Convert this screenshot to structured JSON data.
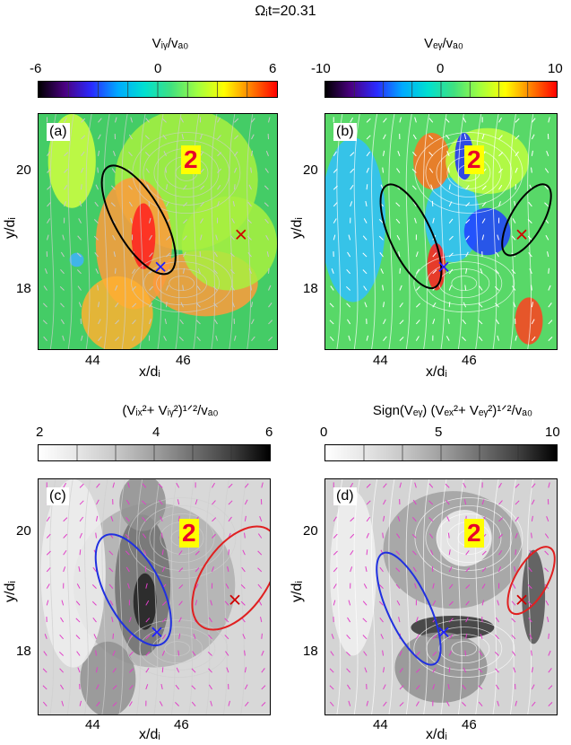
{
  "title": "Ωᵢt=20.31",
  "chart_data": [
    {
      "type": "heatmap",
      "panel_label": "(a)",
      "colorbar_label": "Vᵢᵧ/vₐ₀",
      "colorbar_ticks": [
        "-6",
        "0",
        "6"
      ],
      "colorbar_range": [
        -6,
        6
      ],
      "colormap": "rainbow",
      "xlabel": "x/dᵢ",
      "ylabel": "y/dᵢ",
      "x_ticks": [
        "44",
        "46"
      ],
      "y_ticks": [
        "20",
        "18"
      ],
      "xlim": [
        43.3,
        47.6
      ],
      "ylim": [
        17,
        21
      ],
      "annotation": "2",
      "ellipse_color": "#000000",
      "markers": [
        {
          "symbol": "x",
          "color": "#2020ff",
          "x": 45.5,
          "y": 18.4
        },
        {
          "symbol": "x",
          "color": "#d00000",
          "x": 46.95,
          "y": 18.95
        }
      ]
    },
    {
      "type": "heatmap",
      "panel_label": "(b)",
      "colorbar_label": "Vₑᵧ/vₐ₀",
      "colorbar_ticks": [
        "-10",
        "0",
        "10"
      ],
      "colorbar_range": [
        -10,
        10
      ],
      "colormap": "rainbow",
      "xlabel": "x/dᵢ",
      "ylabel": "y/dᵢ",
      "x_ticks": [
        "44",
        "46"
      ],
      "y_ticks": [
        "20",
        "18"
      ],
      "xlim": [
        43.3,
        47.6
      ],
      "ylim": [
        17,
        21
      ],
      "annotation": "2",
      "ellipse_color": "#000000",
      "markers": [
        {
          "symbol": "x",
          "color": "#2020ff",
          "x": 45.5,
          "y": 18.4
        },
        {
          "symbol": "x",
          "color": "#d00000",
          "x": 46.95,
          "y": 18.95
        }
      ]
    },
    {
      "type": "heatmap",
      "panel_label": "(c)",
      "colorbar_label": "(Vᵢₓ²+ Vᵢᵧ²)¹ᐟ²/vₐ₀",
      "colorbar_ticks": [
        "2",
        "4",
        "6"
      ],
      "colorbar_range": [
        2,
        6
      ],
      "colormap": "gray",
      "xlabel": "x/dᵢ",
      "ylabel": "y/dᵢ",
      "x_ticks": [
        "44",
        "46"
      ],
      "y_ticks": [
        "20",
        "18"
      ],
      "xlim": [
        43.3,
        47.6
      ],
      "ylim": [
        17,
        21
      ],
      "annotation": "2",
      "ellipse_colors": [
        "#2030e0",
        "#e02020"
      ],
      "markers": [
        {
          "symbol": "x",
          "color": "#2020ff",
          "x": 45.5,
          "y": 18.4
        },
        {
          "symbol": "x",
          "color": "#d00000",
          "x": 46.95,
          "y": 18.95
        }
      ]
    },
    {
      "type": "heatmap",
      "panel_label": "(d)",
      "colorbar_label": "Sign(Vₑᵧ) (Vₑₓ²+ Vₑᵧ²)¹ᐟ²/vₐ₀",
      "colorbar_ticks": [
        "0",
        "5",
        "10"
      ],
      "colorbar_range": [
        0,
        10
      ],
      "colormap": "gray",
      "xlabel": "x/dᵢ",
      "ylabel": "y/dᵢ",
      "x_ticks": [
        "44",
        "46"
      ],
      "y_ticks": [
        "20",
        "18"
      ],
      "xlim": [
        43.3,
        47.6
      ],
      "ylim": [
        17,
        21
      ],
      "annotation": "2",
      "ellipse_colors": [
        "#2030e0",
        "#e02020"
      ],
      "markers": [
        {
          "symbol": "x",
          "color": "#2020ff",
          "x": 45.5,
          "y": 18.4
        },
        {
          "symbol": "x",
          "color": "#d00000",
          "x": 46.95,
          "y": 18.95
        }
      ]
    }
  ]
}
